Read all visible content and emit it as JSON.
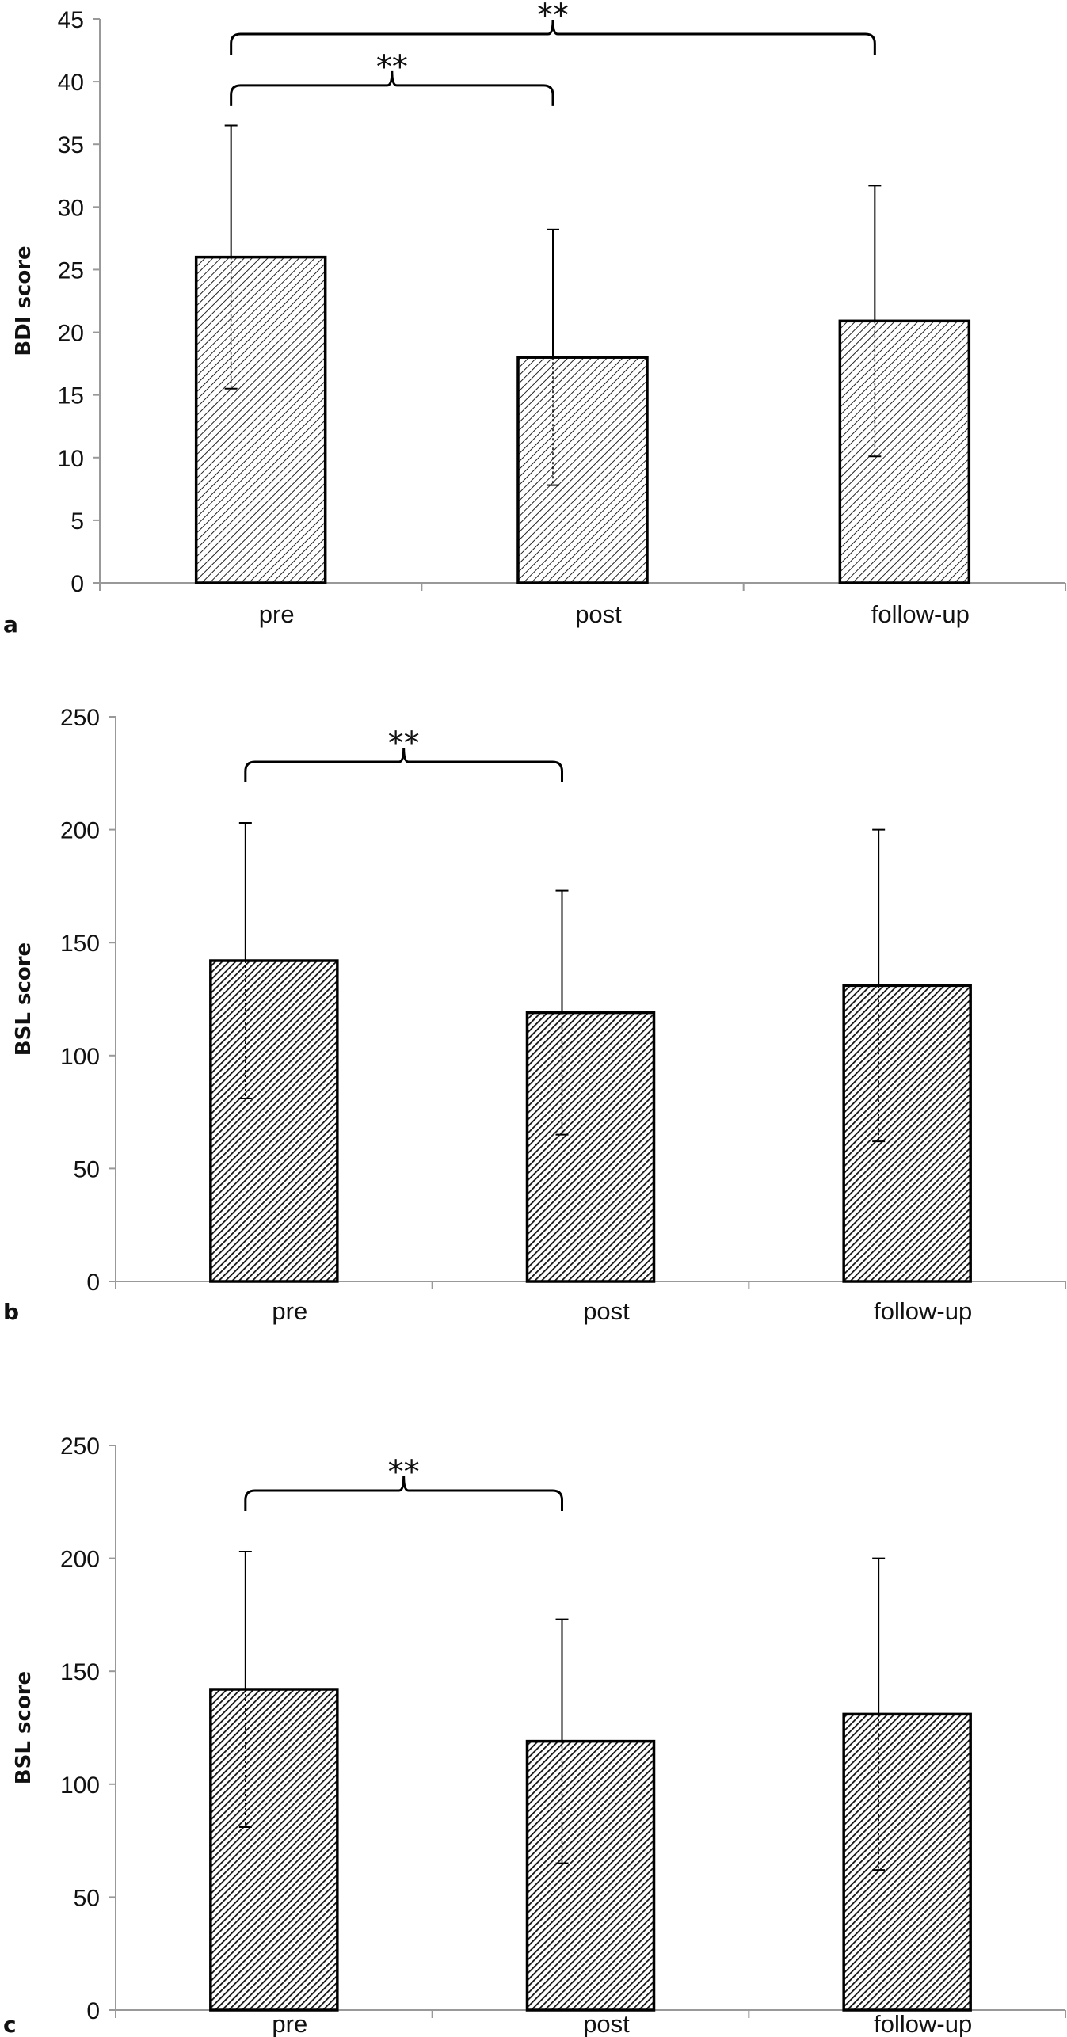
{
  "chart_data": [
    {
      "type": "bar",
      "panel": "a",
      "ylabel": "BDI score",
      "xlabel": "",
      "categories": [
        "pre",
        "post",
        "follow-up"
      ],
      "values": [
        26.0,
        18.0,
        20.9
      ],
      "errors": [
        10.5,
        10.2,
        10.8
      ],
      "ylim": [
        0,
        45
      ],
      "yticks": [
        0,
        5,
        10,
        15,
        20,
        25,
        30,
        35,
        40,
        45
      ],
      "fill": "light-hatch",
      "significance": [
        {
          "from": "pre",
          "to": "post",
          "label": "**",
          "level": 39.7
        },
        {
          "from": "pre",
          "to": "follow-up",
          "label": "**",
          "level": 43.8
        }
      ]
    },
    {
      "type": "bar",
      "panel": "b",
      "ylabel": "BSL score",
      "xlabel": "",
      "categories": [
        "pre",
        "post",
        "follow-up"
      ],
      "values": [
        142,
        119,
        131
      ],
      "errors": [
        61,
        54,
        69
      ],
      "ylim": [
        0,
        250
      ],
      "yticks": [
        0,
        50,
        100,
        150,
        200,
        250
      ],
      "fill": "dark-hatch",
      "significance": [
        {
          "from": "pre",
          "to": "post",
          "label": "**",
          "level": 230
        }
      ]
    },
    {
      "type": "bar",
      "panel": "c",
      "ylabel": "BSL score",
      "xlabel": "",
      "categories": [
        "pre",
        "post",
        "follow-up"
      ],
      "values": [
        142,
        119,
        131
      ],
      "errors": [
        61,
        54,
        69
      ],
      "ylim": [
        0,
        250
      ],
      "yticks": [
        0,
        50,
        100,
        150,
        200,
        250
      ],
      "fill": "dark-hatch",
      "significance": [
        {
          "from": "pre",
          "to": "post",
          "label": "**",
          "level": 230
        }
      ]
    }
  ]
}
